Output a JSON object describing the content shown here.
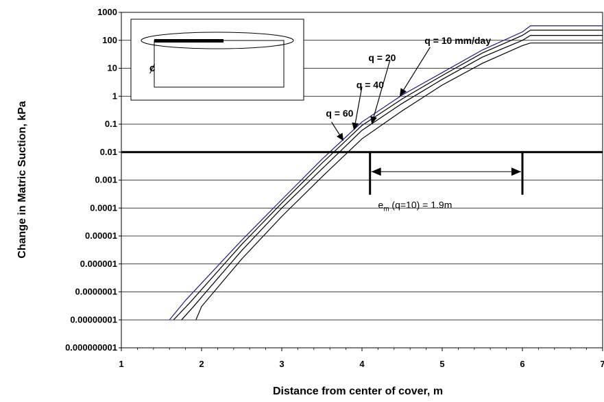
{
  "chart_data": {
    "type": "line",
    "xlabel": "Distance from center of cover, m",
    "ylabel": "Change in Matric Suction, kPa",
    "xlim": [
      1,
      7
    ],
    "ylim": [
      1e-09,
      1000
    ],
    "yscale": "log",
    "x_ticks": [
      "1",
      "2",
      "3",
      "4",
      "5",
      "6",
      "7"
    ],
    "y_ticks": [
      "1000",
      "100",
      "10",
      "1",
      "0.1",
      "0.01",
      "0.001",
      "0.0001",
      "0.00001",
      "0.000001",
      "0.0000001",
      "0.00000001",
      "0.000000001"
    ],
    "grid": "horizontal",
    "series": [
      {
        "name": "q = 10 mm/day",
        "color": "#000000",
        "x": [
          1.93,
          2.0,
          2.5,
          3.0,
          3.5,
          4.0,
          4.5,
          5.0,
          5.5,
          6.0,
          6.1,
          6.5,
          7.0
        ],
        "y": [
          1e-08,
          3e-08,
          1.5e-06,
          5e-05,
          0.0013,
          0.03,
          0.3,
          2.5,
          15,
          65,
          80,
          80,
          80
        ]
      },
      {
        "name": "q = 20",
        "color": "#000000",
        "x": [
          1.75,
          1.9,
          2.5,
          3.0,
          3.5,
          4.0,
          4.5,
          5.0,
          5.5,
          6.0,
          6.1,
          6.5,
          7.0
        ],
        "y": [
          1e-08,
          3e-08,
          3e-06,
          0.0001,
          0.0025,
          0.06,
          0.55,
          4,
          25,
          100,
          150,
          150,
          150
        ]
      },
      {
        "name": "q = 40",
        "color": "#000000",
        "x": [
          1.65,
          1.85,
          2.5,
          3.0,
          3.5,
          4.0,
          4.5,
          5.0,
          5.5,
          6.0,
          6.1,
          6.5,
          7.0
        ],
        "y": [
          1e-08,
          4e-08,
          5e-06,
          0.00015,
          0.004,
          0.09,
          0.8,
          5.5,
          35,
          150,
          230,
          230,
          230
        ]
      },
      {
        "name": "q = 60",
        "color": "#1a1a8c",
        "x": [
          1.6,
          1.8,
          2.5,
          3.0,
          3.5,
          4.0,
          4.5,
          5.0,
          5.5,
          6.0,
          6.1,
          6.5,
          7.0
        ],
        "y": [
          1e-08,
          5e-08,
          7e-06,
          0.0002,
          0.0055,
          0.12,
          1.1,
          7,
          45,
          200,
          330,
          330,
          330
        ]
      }
    ],
    "threshold": {
      "y": 0.01
    },
    "labels": {
      "q10": "q = 10 mm/day",
      "q20": "q = 20",
      "q40": "q = 40",
      "q60": "q = 60",
      "em_prefix": "e",
      "em_sub": "m",
      "em_suffix": " (q=10) = 1.9m",
      "centerline": "ȼ"
    },
    "em_range": [
      4.1,
      6.0
    ],
    "arrows": [
      {
        "from": [
          4.85,
          57
        ],
        "to": [
          4.47,
          1.0
        ]
      },
      {
        "from": [
          4.35,
          20
        ],
        "to": [
          4.12,
          0.1
        ]
      },
      {
        "from": [
          4.0,
          2.2
        ],
        "to": [
          3.9,
          0.06
        ]
      },
      {
        "from": [
          3.62,
          0.12
        ],
        "to": [
          3.77,
          0.025
        ]
      }
    ]
  }
}
